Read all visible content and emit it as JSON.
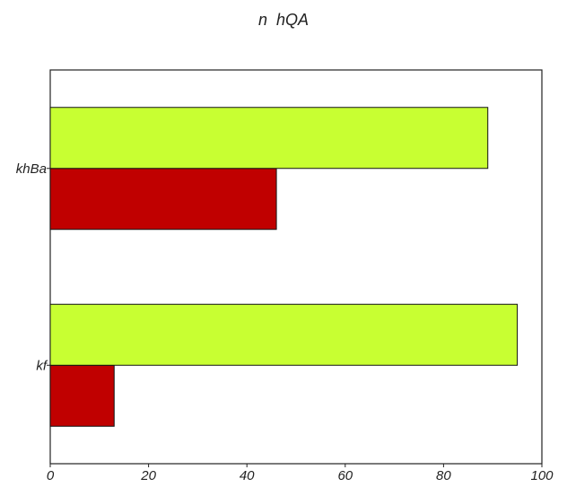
{
  "chart_data": {
    "type": "bar",
    "orientation": "horizontal",
    "title": "n  hQA",
    "xlabel": "",
    "ylabel": "",
    "categories": [
      "kf",
      "khBa"
    ],
    "series": [
      {
        "values": [
          13,
          46
        ],
        "color": "#c00000"
      },
      {
        "values": [
          95,
          89
        ],
        "color": "#c8ff32"
      }
    ],
    "xlim": [
      0,
      100
    ],
    "xticks": [
      0,
      20,
      40,
      60,
      80,
      100
    ],
    "grid": false
  }
}
